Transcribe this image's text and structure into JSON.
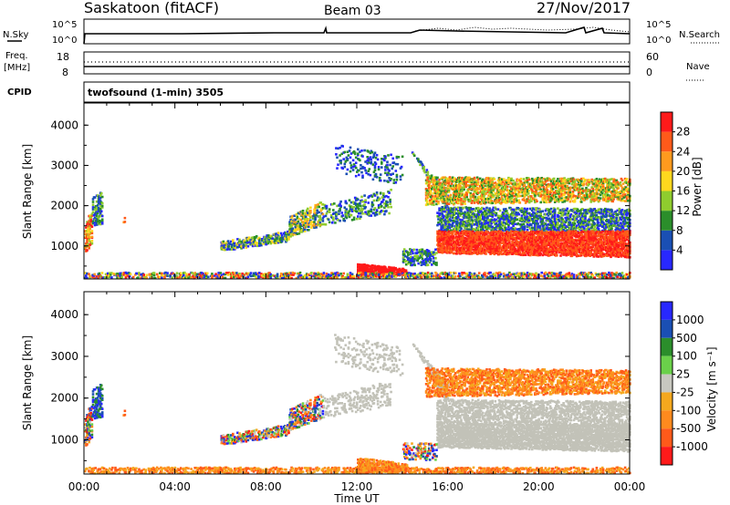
{
  "header": {
    "station": "Saskatoon (fitACF)",
    "beam": "Beam 03",
    "date": "27/Nov/2017"
  },
  "top_panels": {
    "nsky_label": "N.Sky",
    "nsky_ticks": [
      "10^5",
      "10^0"
    ],
    "nsearch_label": "N.Search",
    "freq_label_1": "Freq.",
    "freq_label_2": "[MHz]",
    "freq_ticks": [
      "18",
      "8"
    ],
    "nave_ticks": [
      "60",
      "0"
    ],
    "nave_label": "Nave",
    "cpid_label": "CPID",
    "cpid_text": "twofsound (1-min) 3505"
  },
  "time_axis": {
    "ticks": [
      "00:00",
      "04:00",
      "08:00",
      "12:00",
      "16:00",
      "20:00",
      "00:00"
    ],
    "xlabel": "Time UT"
  },
  "colors": {
    "power": [
      "#2828ff",
      "#1a4fb4",
      "#2b8e2b",
      "#8fcc2e",
      "#ffd81e",
      "#ff9a1e",
      "#ff5a1a",
      "#ff1a1a"
    ],
    "velocity": [
      "#2828ff",
      "#1a4fb4",
      "#2b8e2b",
      "#6ad14a",
      "#c8c8c0",
      "#f5a81e",
      "#ff8a1e",
      "#ff5a1a",
      "#ff1a1a"
    ],
    "ground": "#c2c2b8"
  },
  "chart_data": [
    {
      "type": "heatmap",
      "name": "power-panel",
      "ylabel": "Slant Range [km]",
      "xlabel": "",
      "ylim": [
        180,
        4550
      ],
      "yticks": [
        "1000",
        "2000",
        "3000",
        "4000"
      ],
      "colorbar_label": "Power [dB]",
      "colorbar_ticks": [
        "4",
        "8",
        "12",
        "16",
        "20",
        "24",
        "28"
      ],
      "colorbar_range": [
        0,
        32
      ]
    },
    {
      "type": "heatmap",
      "name": "velocity-panel",
      "ylabel": "Slant Range [km]",
      "xlabel": "Time UT",
      "ylim": [
        180,
        4550
      ],
      "yticks": [
        "1000",
        "2000",
        "3000",
        "4000"
      ],
      "colorbar_label": "Velocity [m s⁻¹]",
      "colorbar_ticks": [
        "1000",
        "500",
        "100",
        "25",
        "-25",
        "-100",
        "-500",
        "-1000"
      ]
    }
  ]
}
